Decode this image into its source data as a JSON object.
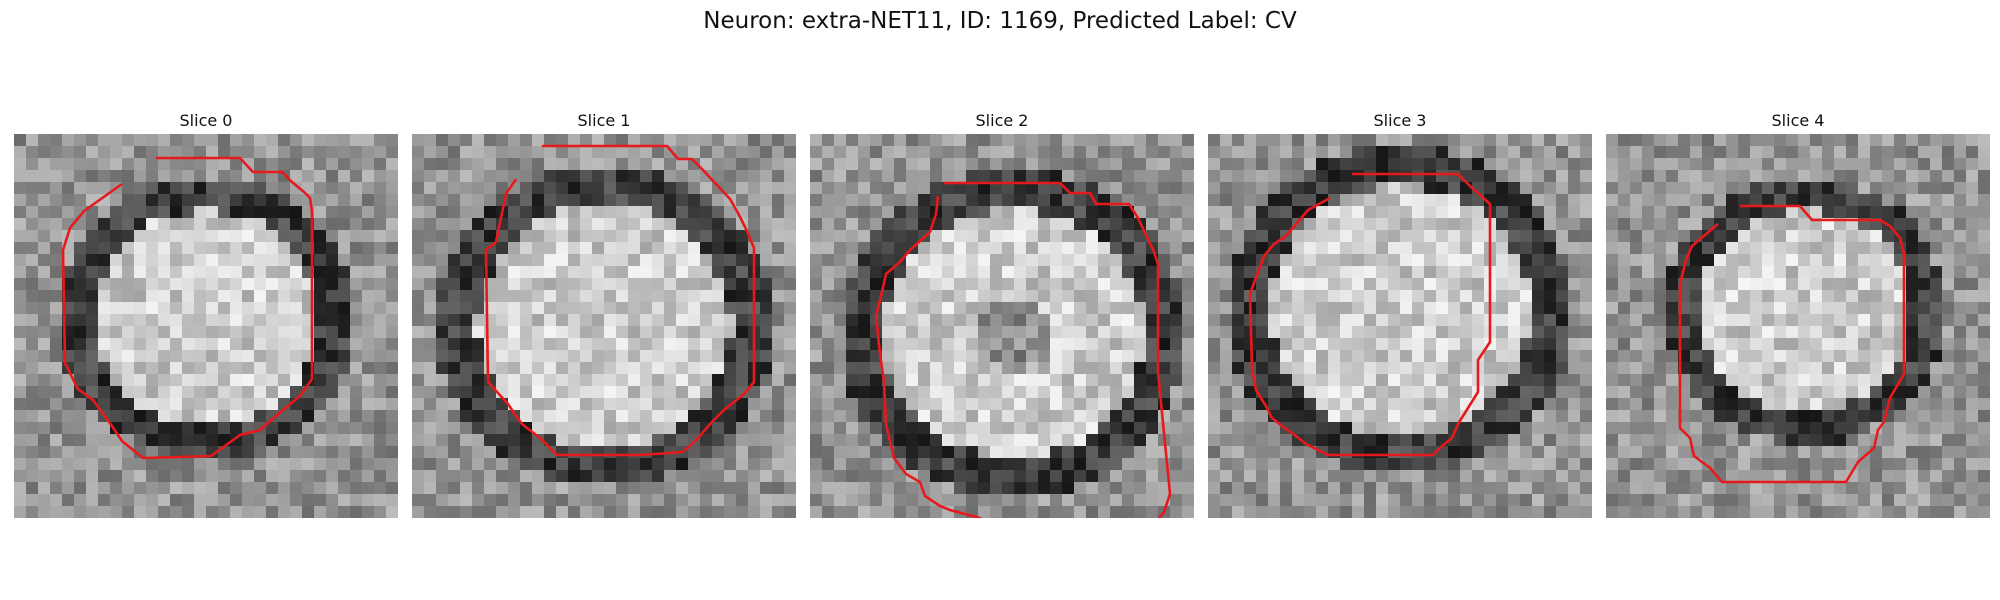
{
  "figure": {
    "title": "Neuron: extra-NET11, ID: 1169, Predicted Label: CV"
  },
  "panels": [
    {
      "title": "Slice 0"
    },
    {
      "title": "Slice 1"
    },
    {
      "title": "Slice 2"
    },
    {
      "title": "Slice 3"
    },
    {
      "title": "Slice 4"
    }
  ],
  "colors": {
    "outline": "#e8191c",
    "background": "#ffffff"
  }
}
